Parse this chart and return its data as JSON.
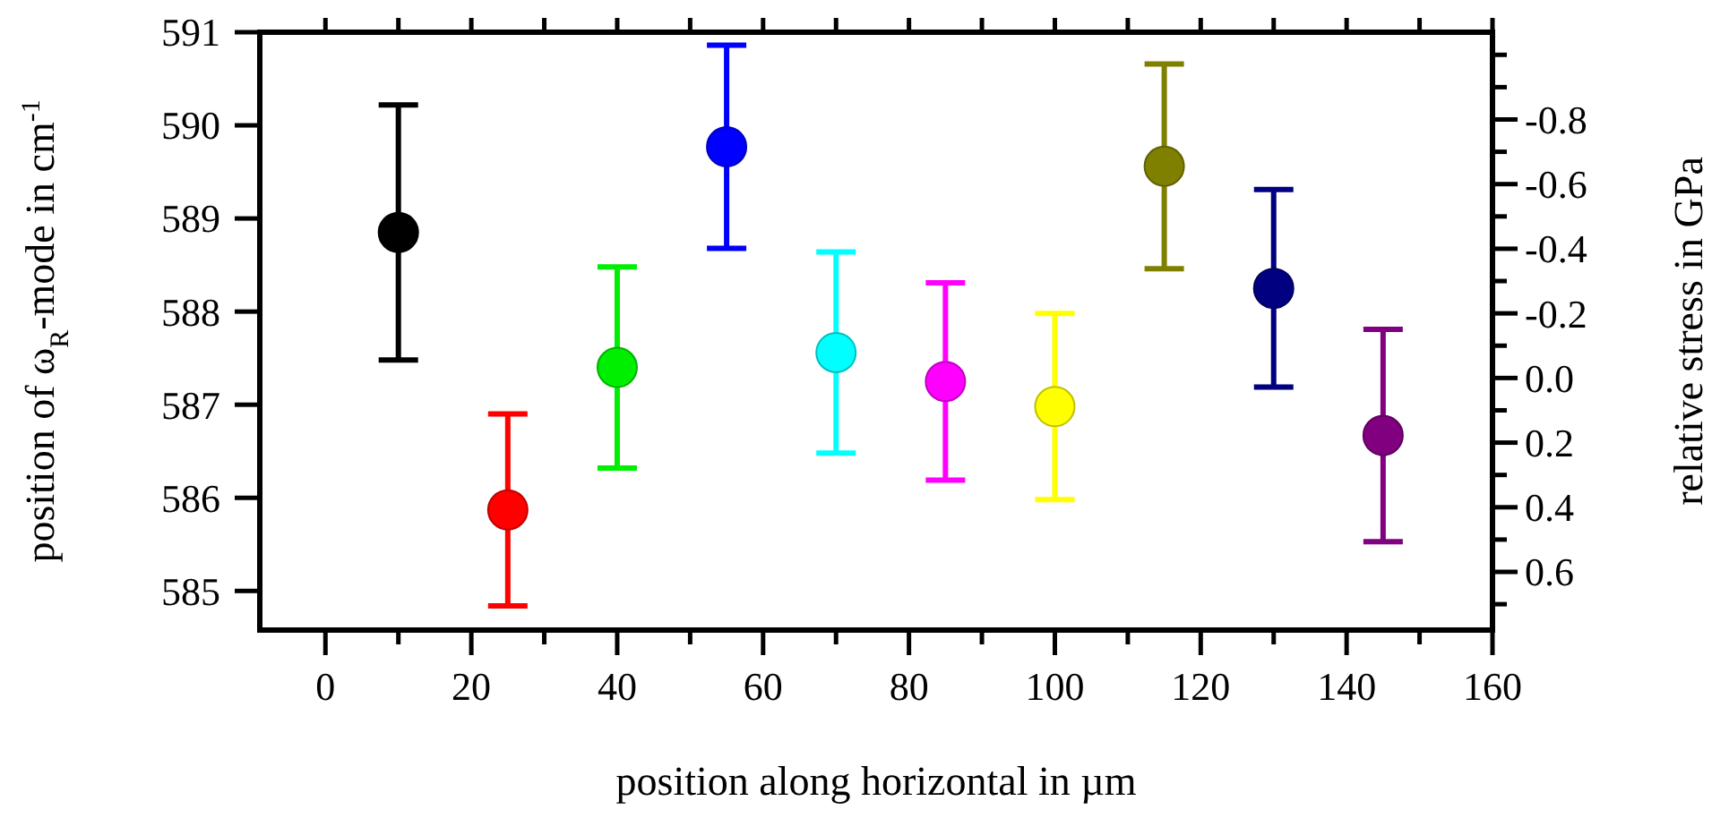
{
  "chart_data": {
    "type": "scatter",
    "xlabel": "position along horizontal in µm",
    "ylabel": "position of ω$_{R}$-mode in cm$^{-1}$",
    "y2label": "relative stress in GPa",
    "x": [
      10,
      25,
      40,
      55,
      70,
      85,
      100,
      115,
      130,
      145
    ],
    "values": [
      588.85,
      585.87,
      587.4,
      589.77,
      587.56,
      587.25,
      586.98,
      589.56,
      588.25,
      586.67
    ],
    "errors": [
      1.37,
      1.03,
      1.08,
      1.09,
      1.08,
      1.06,
      1.0,
      1.1,
      1.06,
      1.14
    ],
    "colors": [
      "#000000",
      "#ff0000",
      "#00ee00",
      "#0000ff",
      "#00ffff",
      "#ff00ff",
      "#ffff00",
      "#808000",
      "#000080",
      "#800080"
    ],
    "marker": "circle",
    "grid": false,
    "xlim": [
      -9,
      160
    ],
    "xticks": [
      0,
      {
        "value": 10,
        "label": null
      },
      20,
      {
        "value": 30,
        "label": null
      },
      40,
      {
        "value": 50,
        "label": null
      },
      60,
      {
        "value": 70,
        "label": null
      },
      80,
      {
        "value": 90,
        "label": null
      },
      100,
      {
        "value": 110,
        "label": null
      },
      120,
      {
        "value": 130,
        "label": null
      },
      140,
      {
        "value": 150,
        "label": null
      },
      160
    ],
    "ylim": [
      584.58,
      591
    ],
    "yticks": [
      585,
      586,
      587,
      588,
      589,
      590,
      591
    ],
    "y2lim": [
      0.78,
      -1.07
    ],
    "y2ticks": [
      {
        "value": -1.0,
        "label": null
      },
      {
        "value": -0.9,
        "label": null
      },
      {
        "value": -0.8,
        "label": "-0.8"
      },
      {
        "value": -0.7,
        "label": null
      },
      {
        "value": -0.6,
        "label": "-0.6"
      },
      {
        "value": -0.5,
        "label": null
      },
      {
        "value": -0.4,
        "label": "-0.4"
      },
      {
        "value": -0.3,
        "label": null
      },
      {
        "value": -0.2,
        "label": "-0.2"
      },
      {
        "value": -0.1,
        "label": null
      },
      {
        "value": 0,
        "label": "0.0"
      },
      {
        "value": 0.1,
        "label": null
      },
      {
        "value": 0.2,
        "label": "0.2"
      },
      {
        "value": 0.3,
        "label": null
      },
      {
        "value": 0.4,
        "label": "0.4"
      },
      {
        "value": 0.5,
        "label": null
      },
      {
        "value": 0.6,
        "label": "0.6"
      },
      {
        "value": 0.7,
        "label": null
      }
    ]
  }
}
